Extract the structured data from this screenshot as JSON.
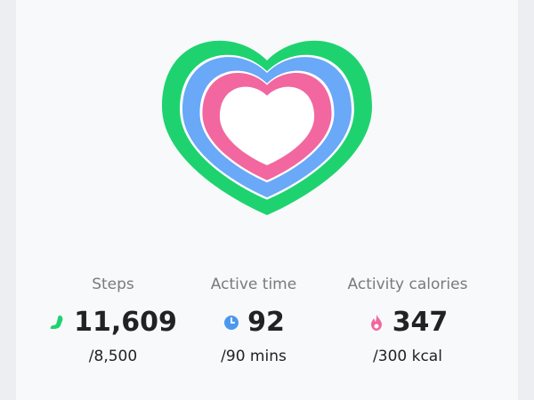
{
  "stats": [
    {
      "label": "Steps",
      "value": "11,609",
      "goal": "/8,500"
    },
    {
      "label": "Active time",
      "value": "92",
      "goal": "/90 mins"
    },
    {
      "label": "Activity calories",
      "value": "347",
      "goal": "/300 kcal"
    }
  ]
}
